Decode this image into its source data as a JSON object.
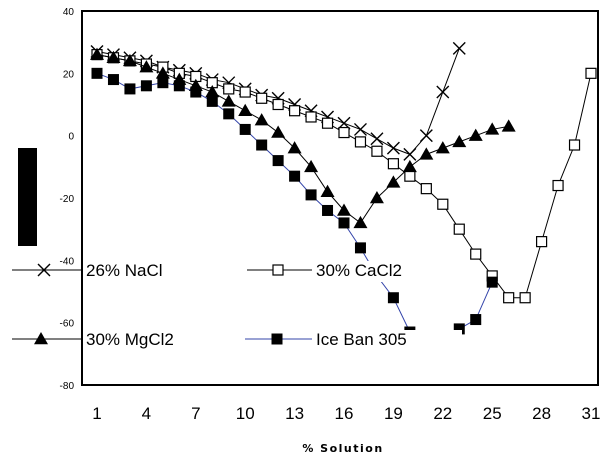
{
  "chart_data": {
    "type": "line",
    "xlabel": "% Solution",
    "ylabel": "",
    "ylim": [
      -80,
      40
    ],
    "yticks": [
      -80,
      -60,
      -40,
      -20,
      0,
      20,
      40
    ],
    "xlim": [
      1,
      31
    ],
    "xticks": [
      1,
      4,
      7,
      10,
      13,
      16,
      19,
      22,
      25,
      28,
      31
    ],
    "grid": false,
    "legend_position": "inside-left",
    "series": [
      {
        "name": "26% NaCl",
        "marker": "x",
        "color": "#000000",
        "x": [
          1,
          2,
          3,
          4,
          5,
          6,
          7,
          8,
          9,
          10,
          11,
          12,
          13,
          14,
          15,
          16,
          17,
          18,
          19,
          20,
          21,
          22,
          23
        ],
        "y": [
          27,
          26,
          25,
          24,
          22,
          21,
          20,
          18,
          17,
          15,
          13,
          12,
          10,
          8,
          6,
          4,
          2,
          -1,
          -4,
          -6,
          0,
          14,
          28
        ]
      },
      {
        "name": "30% CaCl2",
        "marker": "open-square",
        "color": "#000000",
        "x": [
          1,
          2,
          3,
          4,
          5,
          6,
          7,
          8,
          9,
          10,
          11,
          12,
          13,
          14,
          15,
          16,
          17,
          18,
          19,
          20,
          21,
          22,
          23,
          24,
          25,
          26,
          27,
          28,
          29,
          30,
          31
        ],
        "y": [
          26,
          25,
          24,
          23,
          22,
          20,
          19,
          17,
          15,
          14,
          12,
          10,
          8,
          6,
          4,
          1,
          -2,
          -5,
          -9,
          -13,
          -17,
          -22,
          -30,
          -38,
          -45,
          -52,
          -52,
          -34,
          -16,
          -3,
          20
        ]
      },
      {
        "name": "30% MgCl2",
        "marker": "filled-triangle",
        "color": "#000000",
        "x": [
          1,
          2,
          3,
          4,
          5,
          6,
          7,
          8,
          9,
          10,
          11,
          12,
          13,
          14,
          15,
          16,
          17,
          18,
          19,
          20,
          21,
          22,
          23,
          24,
          25,
          26
        ],
        "y": [
          26,
          25,
          24,
          22,
          20,
          18,
          16,
          14,
          11,
          8,
          5,
          1,
          -4,
          -10,
          -18,
          -24,
          -28,
          -20,
          -15,
          -10,
          -6,
          -4,
          -2,
          0,
          2,
          3
        ]
      },
      {
        "name": "Ice Ban 305",
        "marker": "filled-square",
        "color": "#3344aa",
        "x": [
          1,
          2,
          3,
          4,
          5,
          6,
          7,
          8,
          9,
          10,
          11,
          12,
          13,
          14,
          15,
          16,
          17,
          18,
          19,
          20,
          21,
          22,
          23,
          24,
          25
        ],
        "y": [
          20,
          18,
          15,
          16,
          17,
          16,
          14,
          11,
          7,
          2,
          -3,
          -8,
          -13,
          -19,
          -24,
          -28,
          -36,
          -45,
          -52,
          -63,
          -66,
          -66,
          -62,
          -59,
          -47
        ]
      }
    ]
  }
}
